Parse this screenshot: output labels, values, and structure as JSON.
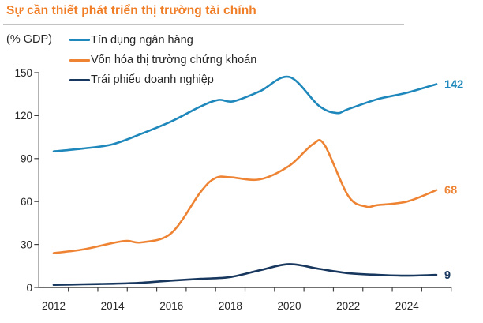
{
  "colors": {
    "title": "#F07E26",
    "text": "#262626",
    "axis": "#404040",
    "divider": "#C3C3C3",
    "background": "#FFFFFF"
  },
  "chart_data": {
    "type": "line",
    "title": "Sự cần thiết phát triển thị trường tài chính",
    "ylabel": "(% GDP)",
    "xlabel": "",
    "ylim": [
      0,
      150
    ],
    "yticks": [
      0,
      30,
      60,
      90,
      120,
      150
    ],
    "xlim": [
      2012,
      2025
    ],
    "xticks_labeled": [
      2012,
      2014,
      2016,
      2018,
      2020,
      2022,
      2024
    ],
    "grid": false,
    "legend_position": "top-left",
    "series": [
      {
        "name": "Tín dụng ngân hàng",
        "color": "#1E87BB",
        "end_label": "142",
        "points": [
          [
            2012,
            95
          ],
          [
            2013,
            97
          ],
          [
            2014,
            100
          ],
          [
            2015,
            107.5
          ],
          [
            2016,
            116
          ],
          [
            2017,
            126.5
          ],
          [
            2017.6,
            131
          ],
          [
            2018.1,
            130
          ],
          [
            2019,
            137
          ],
          [
            2020,
            147
          ],
          [
            2021,
            127
          ],
          [
            2021.6,
            121.8
          ],
          [
            2022,
            124.5
          ],
          [
            2023,
            131.5
          ],
          [
            2024,
            136
          ],
          [
            2025,
            142
          ]
        ]
      },
      {
        "name": "Vốn hóa thị trường chứng khoán",
        "color": "#EE8433",
        "end_label": "68",
        "points": [
          [
            2012,
            24
          ],
          [
            2013,
            26.5
          ],
          [
            2014,
            31
          ],
          [
            2014.5,
            32.5
          ],
          [
            2015,
            31.5
          ],
          [
            2016,
            38
          ],
          [
            2017,
            67
          ],
          [
            2017.5,
            76.5
          ],
          [
            2018,
            77
          ],
          [
            2019,
            75.5
          ],
          [
            2020,
            85
          ],
          [
            2020.8,
            100
          ],
          [
            2021.2,
            99.5
          ],
          [
            2022,
            64
          ],
          [
            2022.6,
            56.5
          ],
          [
            2023,
            57.5
          ],
          [
            2024,
            60
          ],
          [
            2025,
            68
          ]
        ]
      },
      {
        "name": "Trái phiếu doanh nghiệp",
        "color": "#17375E",
        "end_label": "9",
        "points": [
          [
            2012,
            1.8
          ],
          [
            2013,
            2.2
          ],
          [
            2014,
            2.6
          ],
          [
            2015,
            3.3
          ],
          [
            2016,
            4.8
          ],
          [
            2017,
            6
          ],
          [
            2018,
            7.3
          ],
          [
            2019,
            12
          ],
          [
            2020,
            16.3
          ],
          [
            2021,
            13
          ],
          [
            2022,
            10
          ],
          [
            2023,
            8.8
          ],
          [
            2024,
            8.2
          ],
          [
            2025,
            8.8
          ]
        ]
      }
    ]
  }
}
